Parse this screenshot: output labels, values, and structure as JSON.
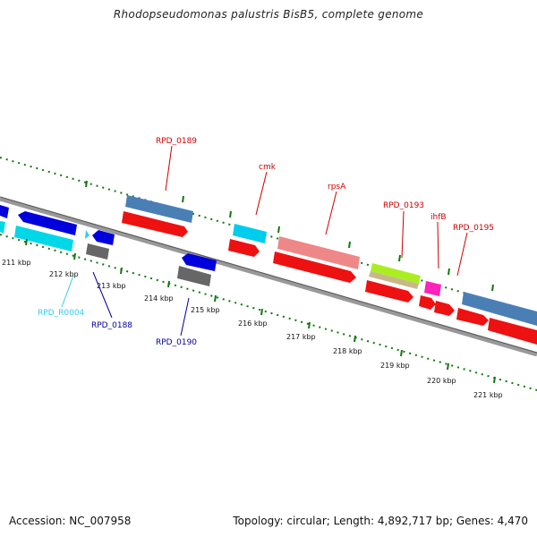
{
  "header": {
    "title": "Rhodopseudomonas palustris BisB5, complete genome"
  },
  "footer": {
    "accession": "Accession: NC_007958",
    "topology": "Topology: circular; Length: 4,892,717 bp; Genes: 4,470"
  },
  "scale": {
    "ticks": [
      "211 kbp",
      "212 kbp",
      "213 kbp",
      "214 kbp",
      "215 kbp",
      "216 kbp",
      "217 kbp",
      "218 kbp",
      "219 kbp",
      "220 kbp",
      "221 kbp"
    ]
  },
  "genes": [
    {
      "name": "RPD_0189",
      "color": "#cc0000"
    },
    {
      "name": "cmk",
      "color": "#cc0000"
    },
    {
      "name": "rpsA",
      "color": "#cc0000"
    },
    {
      "name": "RPD_0193",
      "color": "#cc0000"
    },
    {
      "name": "ihfB",
      "color": "#cc0000"
    },
    {
      "name": "RPD_0195",
      "color": "#cc0000"
    },
    {
      "name": "RPD_R0004",
      "color": "#33ccee"
    },
    {
      "name": "RPD_0188",
      "color": "#000099"
    },
    {
      "name": "RPD_0190",
      "color": "#000099"
    }
  ],
  "colors": {
    "cds_red": "#ee1111",
    "cog_blue": "#4a7fb5",
    "cyan": "#00d8e8",
    "dark_blue": "#0000dd",
    "pink": "#ee8888",
    "green": "#aaee22",
    "tan": "#c8b888",
    "magenta": "#ff22bb",
    "gray": "#666666",
    "skew_green": "#117711",
    "backbone": "#888888"
  }
}
